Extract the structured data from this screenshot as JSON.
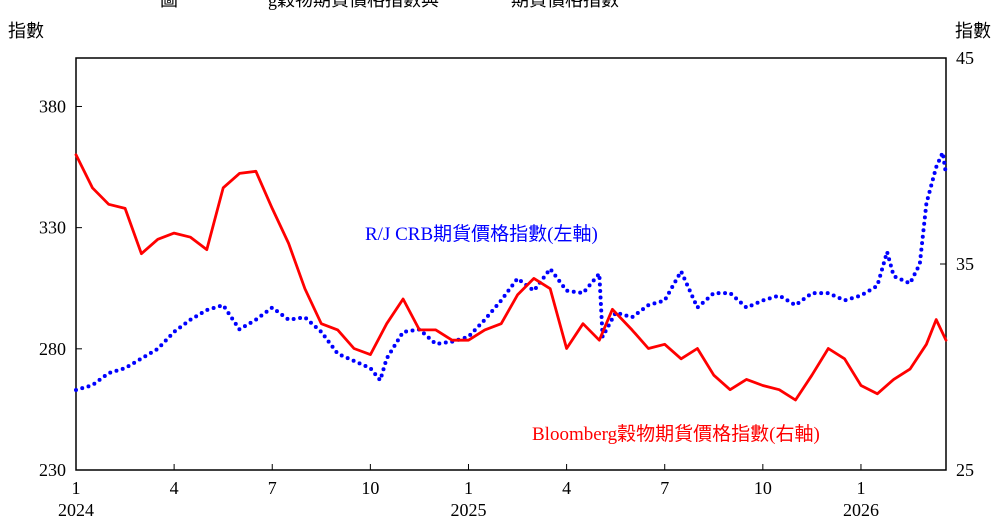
{
  "chart_data": {
    "type": "line",
    "title": "圖　　　　　g穀物期貨價格指數與　　　　期貨價格指數",
    "ylabel": "指數",
    "y2label": "指數",
    "annotations": [
      "R/J CRB期貨價格指數(左軸)",
      "Bloomberg穀物期貨價格指數(右軸)"
    ],
    "xlim": [
      0,
      26.6
    ],
    "xticks": [
      {
        "value": 0,
        "label": "1"
      },
      {
        "value": 3,
        "label": "4"
      },
      {
        "value": 6,
        "label": "7"
      },
      {
        "value": 9,
        "label": "10"
      },
      {
        "value": 12,
        "label": "1"
      },
      {
        "value": 15,
        "label": "4"
      },
      {
        "value": 18,
        "label": "7"
      },
      {
        "value": 21,
        "label": "10"
      },
      {
        "value": 24,
        "label": "1"
      }
    ],
    "year_labels": [
      {
        "value": 0,
        "label": "2024"
      },
      {
        "value": 12,
        "label": "2025"
      },
      {
        "value": 24,
        "label": "2026"
      }
    ],
    "ylim": [
      230,
      400
    ],
    "yticks": [
      230,
      280,
      330,
      380
    ],
    "y2lim": [
      25,
      45
    ],
    "y2ticks": [
      25,
      35,
      45
    ],
    "series": [
      {
        "name": "R/J CRB期貨價格指數(左軸)",
        "color": "#0000ff",
        "style": "dotted",
        "x": [
          0,
          0.5,
          1,
          1.5,
          2,
          2.5,
          3,
          3.5,
          4,
          4.5,
          5,
          5.5,
          6,
          6.5,
          7,
          7.5,
          8,
          8.5,
          9,
          9.3,
          9.5,
          10,
          10.5,
          11,
          11.5,
          12,
          12.5,
          13,
          13.5,
          14,
          14.5,
          15,
          15.5,
          16,
          16.1,
          16.5,
          17,
          17.5,
          18,
          18.5,
          19,
          19.5,
          20,
          20.5,
          21,
          21.5,
          22,
          22.5,
          23,
          23.5,
          24,
          24.5,
          24.8,
          25,
          25.5,
          25.8,
          26,
          26.3,
          26.5,
          26.6
        ],
        "values": [
          263,
          265,
          270,
          272,
          276,
          280,
          287,
          292,
          296,
          298,
          288,
          292,
          297,
          292,
          293,
          287,
          278,
          275,
          272,
          267,
          276,
          287,
          288,
          282,
          283,
          285,
          292,
          300,
          309,
          304,
          313,
          304,
          303,
          311,
          285,
          295,
          293,
          298,
          300,
          312,
          297,
          303,
          303,
          297,
          300,
          302,
          298,
          303,
          303,
          300,
          302,
          306,
          320,
          310,
          307,
          315,
          340,
          355,
          361,
          352
        ]
      },
      {
        "name": "Bloomberg穀物期貨價格指數(右軸)",
        "color": "#ff0000",
        "style": "solid",
        "axis": "y2",
        "x": [
          0,
          0.5,
          1,
          1.5,
          2,
          2.5,
          3,
          3.5,
          4,
          4.5,
          5,
          5.5,
          6,
          6.5,
          7,
          7.5,
          8,
          8.5,
          9,
          9.5,
          10,
          10.5,
          11,
          11.5,
          12,
          12.5,
          13,
          13.5,
          14,
          14.5,
          15,
          15.5,
          16,
          16.4,
          17,
          17.5,
          18,
          18.5,
          19,
          19.5,
          20,
          20.5,
          21,
          21.5,
          22,
          22.5,
          23,
          23.5,
          24,
          24.5,
          25,
          25.5,
          26,
          26.3,
          26.6
        ],
        "values": [
          40.3,
          38.7,
          37.9,
          37.7,
          35.5,
          36.2,
          36.5,
          36.3,
          35.7,
          38.7,
          39.4,
          39.5,
          37.7,
          36.0,
          33.8,
          32.1,
          31.8,
          30.9,
          30.6,
          32.1,
          33.3,
          31.8,
          31.8,
          31.3,
          31.3,
          31.8,
          32.1,
          33.5,
          34.3,
          33.8,
          30.9,
          32.1,
          31.3,
          32.8,
          31.8,
          30.9,
          31.1,
          30.4,
          30.9,
          29.6,
          28.9,
          29.4,
          29.1,
          28.9,
          28.4,
          29.6,
          30.9,
          30.4,
          29.1,
          28.7,
          29.4,
          29.9,
          31.1,
          32.3,
          31.3
        ]
      }
    ]
  }
}
